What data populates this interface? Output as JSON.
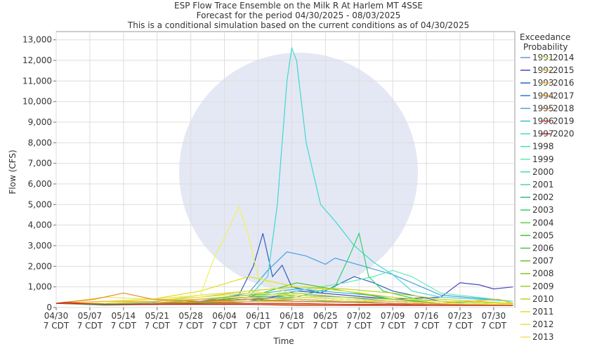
{
  "chart_data": {
    "type": "line",
    "title": "ESP Flow Trace Ensemble on the Milk R At Harlem MT 4SSE",
    "subtitle": "Forecast for the period 04/30/2025 - 08/03/2025",
    "subtitle2": "This is a conditional simulation based on the current conditions as of 04/30/2025",
    "x_label": "Time",
    "y_label": "Flow (CFS)",
    "legend_title": [
      "Exceedance",
      "Probability"
    ],
    "legend": "right",
    "grid": true,
    "xlim": [
      0,
      95.4
    ],
    "ylim": [
      0,
      13400
    ],
    "xticks": [
      {
        "value": 0,
        "label": "04/30\n7 CDT"
      },
      {
        "value": 7,
        "label": "05/07\n7 CDT"
      },
      {
        "value": 14,
        "label": "05/14\n7 CDT"
      },
      {
        "value": 21,
        "label": "05/21\n7 CDT"
      },
      {
        "value": 28,
        "label": "05/28\n7 CDT"
      },
      {
        "value": 35,
        "label": "06/04\n7 CDT"
      },
      {
        "value": 42,
        "label": "06/11\n7 CDT"
      },
      {
        "value": 49,
        "label": "06/18\n7 CDT"
      },
      {
        "value": 56,
        "label": "06/25\n7 CDT"
      },
      {
        "value": 63,
        "label": "07/02\n7 CDT"
      },
      {
        "value": 70,
        "label": "07/09\n7 CDT"
      },
      {
        "value": 77,
        "label": "07/16\n7 CDT"
      },
      {
        "value": 84,
        "label": "07/23\n7 CDT"
      },
      {
        "value": 91,
        "label": "07/30\n7 CDT"
      }
    ],
    "yticks": [
      0,
      {
        "value": 1000,
        "label": "1,000"
      },
      {
        "value": 2000,
        "label": "2,000"
      },
      {
        "value": 3000,
        "label": "3,000"
      },
      {
        "value": 4000,
        "label": "4,000"
      },
      {
        "value": 5000,
        "label": "5,000"
      },
      {
        "value": 6000,
        "label": "6,000"
      },
      {
        "value": 7000,
        "label": "7,000"
      },
      {
        "value": 8000,
        "label": "8,000"
      },
      {
        "value": 9000,
        "label": "9,000"
      },
      {
        "value": 10000,
        "label": "10,000"
      },
      {
        "value": 11000,
        "label": "11,000"
      },
      {
        "value": 12000,
        "label": "12,000"
      },
      {
        "value": 13000,
        "label": "13,000"
      }
    ],
    "series": [
      {
        "name": "1991",
        "color": "#7090d8",
        "x": [
          0,
          10,
          20,
          30,
          40,
          50,
          60,
          70,
          80,
          95
        ],
        "values": [
          200,
          150,
          200,
          300,
          400,
          600,
          500,
          300,
          200,
          150
        ]
      },
      {
        "name": "1992",
        "color": "#4848c0",
        "x": [
          0,
          10,
          20,
          30,
          40,
          45,
          50,
          60,
          70,
          80,
          84,
          88,
          91,
          95
        ],
        "values": [
          200,
          150,
          150,
          200,
          300,
          500,
          800,
          600,
          400,
          500,
          1200,
          1100,
          900,
          1000
        ]
      },
      {
        "name": "1993",
        "color": "#3060c0",
        "x": [
          0,
          10,
          20,
          30,
          38,
          41,
          43,
          45,
          47,
          49,
          55,
          62,
          66,
          70,
          80,
          95
        ],
        "values": [
          200,
          150,
          150,
          300,
          600,
          2000,
          3600,
          1500,
          2050,
          1000,
          700,
          1500,
          1200,
          800,
          300,
          200
        ]
      },
      {
        "name": "1994",
        "color": "#2880c0",
        "x": [
          0,
          10,
          20,
          30,
          40,
          50,
          60,
          70,
          80,
          95
        ],
        "values": [
          200,
          150,
          200,
          250,
          400,
          500,
          400,
          300,
          200,
          150
        ]
      },
      {
        "name": "1995",
        "color": "#48a0e0",
        "x": [
          0,
          10,
          20,
          30,
          40,
          44,
          48,
          52,
          56,
          58,
          64,
          70,
          72,
          76,
          80,
          95
        ],
        "values": [
          200,
          150,
          200,
          300,
          700,
          1800,
          2700,
          2500,
          2100,
          2400,
          2000,
          1600,
          1400,
          1000,
          600,
          300
        ]
      },
      {
        "name": "1996",
        "color": "#38b8e0",
        "x": [
          0,
          10,
          20,
          30,
          40,
          50,
          60,
          70,
          80,
          95
        ],
        "values": [
          200,
          150,
          200,
          400,
          600,
          900,
          700,
          500,
          300,
          200
        ]
      },
      {
        "name": "1997",
        "color": "#40d8d0",
        "x": [
          0,
          10,
          20,
          30,
          40,
          44,
          46,
          48,
          49,
          50,
          52,
          55,
          58,
          62,
          66,
          70,
          74,
          80,
          95
        ],
        "values": [
          200,
          150,
          200,
          300,
          500,
          1500,
          5000,
          11000,
          12600,
          12000,
          8000,
          5000,
          4200,
          3000,
          2200,
          1600,
          800,
          500,
          300
        ]
      },
      {
        "name": "1998",
        "color": "#40e0c0",
        "x": [
          0,
          10,
          20,
          30,
          40,
          50,
          60,
          70,
          80,
          95
        ],
        "values": [
          200,
          100,
          150,
          200,
          300,
          400,
          300,
          200,
          150,
          100
        ]
      },
      {
        "name": "1999",
        "color": "#60e8b8",
        "x": [
          0,
          10,
          20,
          30,
          40,
          50,
          60,
          66,
          70,
          74,
          80,
          95
        ],
        "values": [
          200,
          150,
          200,
          300,
          500,
          800,
          1200,
          1500,
          1800,
          1500,
          700,
          300
        ]
      },
      {
        "name": "2000",
        "color": "#40e0a0",
        "x": [
          0,
          10,
          20,
          30,
          40,
          50,
          60,
          70,
          80,
          95
        ],
        "values": [
          200,
          150,
          200,
          300,
          400,
          300,
          300,
          200,
          150,
          100
        ]
      },
      {
        "name": "2001",
        "color": "#50d890",
        "x": [
          0,
          10,
          20,
          30,
          40,
          50,
          60,
          70,
          80,
          95
        ],
        "values": [
          200,
          150,
          250,
          600,
          800,
          500,
          400,
          300,
          200,
          150
        ]
      },
      {
        "name": "2002",
        "color": "#30c080",
        "x": [
          0,
          10,
          20,
          30,
          40,
          50,
          60,
          70,
          80,
          95
        ],
        "values": [
          200,
          150,
          200,
          300,
          500,
          600,
          400,
          300,
          200,
          150
        ]
      },
      {
        "name": "2003",
        "color": "#30d070",
        "x": [
          0,
          10,
          20,
          30,
          40,
          50,
          58,
          61,
          63,
          65,
          68,
          75,
          85,
          95
        ],
        "values": [
          200,
          150,
          200,
          300,
          400,
          500,
          1000,
          2500,
          3600,
          1500,
          800,
          400,
          200,
          150
        ]
      },
      {
        "name": "2004",
        "color": "#60d040",
        "x": [
          0,
          10,
          20,
          30,
          40,
          50,
          60,
          70,
          80,
          95
        ],
        "values": [
          200,
          150,
          200,
          250,
          300,
          400,
          300,
          200,
          150,
          100
        ]
      },
      {
        "name": "2005",
        "color": "#40c030",
        "x": [
          0,
          10,
          20,
          30,
          40,
          50,
          60,
          70,
          80,
          95
        ],
        "values": [
          200,
          150,
          200,
          300,
          500,
          1200,
          800,
          400,
          200,
          150
        ]
      },
      {
        "name": "2006",
        "color": "#50c040",
        "x": [
          0,
          10,
          20,
          30,
          40,
          50,
          60,
          70,
          80,
          95
        ],
        "values": [
          200,
          150,
          150,
          200,
          300,
          300,
          250,
          200,
          150,
          100
        ]
      },
      {
        "name": "2007",
        "color": "#60c020",
        "x": [
          0,
          10,
          20,
          30,
          40,
          50,
          60,
          70,
          80,
          95
        ],
        "values": [
          200,
          150,
          200,
          300,
          400,
          500,
          400,
          300,
          200,
          100
        ]
      },
      {
        "name": "2008",
        "color": "#80c820",
        "x": [
          0,
          10,
          20,
          30,
          40,
          50,
          60,
          70,
          80,
          95
        ],
        "values": [
          200,
          150,
          200,
          250,
          300,
          300,
          250,
          200,
          150,
          100
        ]
      },
      {
        "name": "2009",
        "color": "#a0d020",
        "x": [
          0,
          10,
          20,
          30,
          40,
          50,
          60,
          70,
          80,
          95
        ],
        "values": [
          200,
          150,
          200,
          400,
          600,
          700,
          500,
          400,
          300,
          200
        ]
      },
      {
        "name": "2010",
        "color": "#c0d020",
        "x": [
          0,
          10,
          20,
          30,
          40,
          50,
          60,
          70,
          80,
          95
        ],
        "values": [
          200,
          200,
          300,
          500,
          800,
          1000,
          900,
          700,
          400,
          200
        ]
      },
      {
        "name": "2011",
        "color": "#e0e020",
        "x": [
          0,
          10,
          20,
          30,
          40,
          50,
          60,
          70,
          80,
          95
        ],
        "values": [
          200,
          300,
          400,
          800,
          1500,
          1000,
          800,
          500,
          300,
          200
        ]
      },
      {
        "name": "2012",
        "color": "#e8e040",
        "x": [
          0,
          10,
          20,
          30,
          40,
          50,
          60,
          70,
          80,
          95
        ],
        "values": [
          200,
          300,
          300,
          500,
          700,
          600,
          400,
          300,
          200,
          150
        ]
      },
      {
        "name": "2013",
        "color": "#f0e060",
        "x": [
          0,
          10,
          20,
          30,
          40,
          50,
          60,
          70,
          80,
          95
        ],
        "values": [
          200,
          500,
          400,
          600,
          800,
          500,
          400,
          300,
          200,
          150
        ]
      },
      {
        "name": "2014",
        "color": "#f0f060",
        "x": [
          0,
          10,
          20,
          30,
          33,
          35,
          38,
          40,
          42,
          46,
          50,
          60,
          70,
          80,
          95
        ],
        "values": [
          200,
          300,
          300,
          600,
          2500,
          3400,
          4900,
          3500,
          1500,
          900,
          600,
          400,
          300,
          200,
          150
        ]
      },
      {
        "name": "2015",
        "color": "#f0c040",
        "x": [
          0,
          10,
          20,
          30,
          40,
          50,
          60,
          70,
          80,
          95
        ],
        "values": [
          200,
          150,
          200,
          300,
          300,
          300,
          250,
          200,
          150,
          100
        ]
      },
      {
        "name": "2016",
        "color": "#f0b030",
        "x": [
          0,
          10,
          20,
          30,
          40,
          50,
          60,
          70,
          80,
          92,
          95
        ],
        "values": [
          200,
          300,
          300,
          400,
          500,
          400,
          300,
          300,
          200,
          400,
          200
        ]
      },
      {
        "name": "2017",
        "color": "#e09020",
        "x": [
          0,
          8,
          14,
          20,
          30,
          40,
          50,
          60,
          70,
          80,
          95
        ],
        "values": [
          200,
          400,
          700,
          400,
          300,
          200,
          150,
          150,
          100,
          100,
          100
        ]
      },
      {
        "name": "2018",
        "color": "#e07040",
        "x": [
          0,
          10,
          20,
          30,
          40,
          50,
          60,
          70,
          80,
          95
        ],
        "values": [
          200,
          150,
          200,
          300,
          400,
          300,
          250,
          200,
          150,
          100
        ]
      },
      {
        "name": "2019",
        "color": "#d04020",
        "x": [
          0,
          10,
          20,
          30,
          40,
          50,
          60,
          70,
          80,
          95
        ],
        "values": [
          200,
          150,
          150,
          200,
          200,
          200,
          150,
          150,
          100,
          100
        ]
      },
      {
        "name": "2020",
        "color": "#c02020",
        "x": [
          0,
          2,
          5,
          10,
          20,
          30,
          40,
          50,
          60,
          70,
          80,
          95
        ],
        "values": [
          200,
          250,
          200,
          150,
          150,
          150,
          150,
          100,
          100,
          100,
          100,
          100
        ]
      }
    ]
  }
}
